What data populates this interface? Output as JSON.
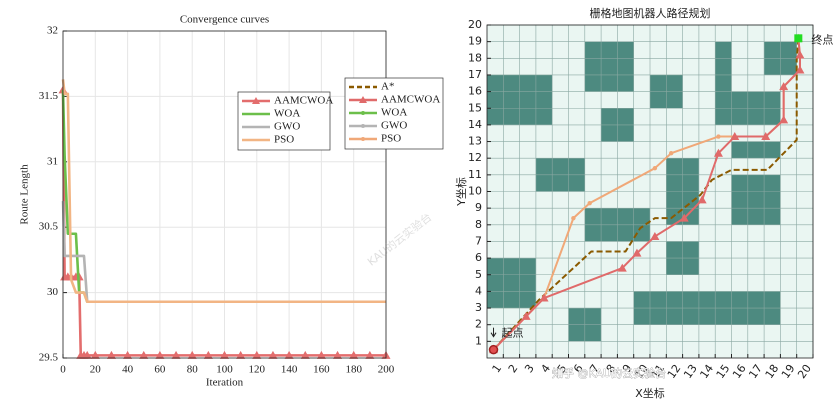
{
  "chart_data": [
    {
      "type": "line",
      "title": "Convergence curves",
      "x_label": "Iteration",
      "y_label": "Route Length",
      "xlim": [
        0,
        200
      ],
      "ylim": [
        29.5,
        32
      ],
      "xticks": [
        0,
        20,
        40,
        60,
        80,
        100,
        120,
        140,
        160,
        180,
        200
      ],
      "yticks": [
        29.5,
        30,
        30.5,
        31,
        31.5,
        32
      ],
      "grid": true,
      "x": [
        0,
        1,
        3,
        5,
        8,
        10,
        11,
        13,
        15,
        20,
        30,
        40,
        50,
        60,
        70,
        80,
        90,
        100,
        110,
        120,
        130,
        140,
        150,
        160,
        170,
        180,
        190,
        200
      ],
      "series": [
        {
          "name": "AAMCWOA",
          "color": "#e36d6d",
          "marker": "triangle",
          "values": [
            31.55,
            30.12,
            30.12,
            30.12,
            30.12,
            30.12,
            29.52,
            29.52,
            29.52,
            29.52,
            29.52,
            29.52,
            29.52,
            29.52,
            29.52,
            29.52,
            29.52,
            29.52,
            29.52,
            29.52,
            29.52,
            29.52,
            29.52,
            29.52,
            29.52,
            29.52,
            29.52,
            29.52
          ]
        },
        {
          "name": "WOA",
          "color": "#6cbf4a",
          "marker": "none",
          "values": [
            31.55,
            31.05,
            30.45,
            30.45,
            30.45,
            30,
            30,
            30,
            29.93,
            29.93,
            29.93,
            29.93,
            29.93,
            29.93,
            29.93,
            29.93,
            29.93,
            29.93,
            29.93,
            29.93,
            29.93,
            29.93,
            29.93,
            29.93,
            29.93,
            29.93,
            29.93,
            29.93
          ]
        },
        {
          "name": "GWO",
          "color": "#b4b4b4",
          "marker": "none",
          "values": [
            30.7,
            30.28,
            30.28,
            30.28,
            30.28,
            30.28,
            30.28,
            30.28,
            29.93,
            29.93,
            29.93,
            29.93,
            29.93,
            29.93,
            29.93,
            29.93,
            29.93,
            29.93,
            29.93,
            29.93,
            29.93,
            29.93,
            29.93,
            29.93,
            29.93,
            29.93,
            29.93,
            29.93
          ]
        },
        {
          "name": "PSO",
          "color": "#f2b584",
          "marker": "none",
          "values": [
            31.63,
            31.52,
            31.52,
            30.1,
            30,
            30,
            30,
            30,
            29.93,
            29.93,
            29.93,
            29.93,
            29.93,
            29.93,
            29.93,
            29.93,
            29.93,
            29.93,
            29.93,
            29.93,
            29.93,
            29.93,
            29.93,
            29.93,
            29.93,
            29.93,
            29.93,
            29.93
          ]
        }
      ]
    },
    {
      "type": "gridmap",
      "title": "栅格地图机器人路径规划",
      "x_label": "X坐标",
      "y_label": "Y坐标",
      "xlim": [
        0,
        20
      ],
      "ylim": [
        0,
        20
      ],
      "xticks": [
        1,
        2,
        3,
        4,
        5,
        6,
        7,
        8,
        9,
        10,
        11,
        12,
        13,
        14,
        15,
        16,
        17,
        18,
        19,
        20
      ],
      "yticks": [
        1,
        2,
        3,
        4,
        5,
        6,
        7,
        8,
        9,
        10,
        11,
        12,
        13,
        14,
        15,
        16,
        17,
        18,
        19,
        20
      ],
      "grid": true,
      "background": "#eaf6f2",
      "obstacle_color": "#4d8a80",
      "obstacles": [
        [
          0,
          4,
          14,
          17
        ],
        [
          0,
          3,
          3,
          6
        ],
        [
          5,
          7,
          1,
          3
        ],
        [
          3,
          6,
          10,
          12
        ],
        [
          6,
          10,
          7,
          9
        ],
        [
          6,
          9,
          16,
          19
        ],
        [
          7,
          9,
          13,
          15
        ],
        [
          10,
          12,
          15,
          17
        ],
        [
          11,
          13,
          8,
          12
        ],
        [
          11,
          13,
          5,
          7
        ],
        [
          9,
          18,
          2,
          4
        ],
        [
          14,
          15,
          14,
          19
        ],
        [
          14,
          18,
          14,
          16
        ],
        [
          15,
          18,
          12,
          13
        ],
        [
          15,
          18,
          8,
          11
        ],
        [
          17,
          19,
          17,
          19
        ]
      ],
      "series": [
        {
          "color": "#8b5a00",
          "marker": "none",
          "dash": true,
          "x": [
            0.4,
            3.2,
            6.4,
            8.5,
            9.4,
            10.3,
            11.3,
            13.1,
            13.8,
            15.0,
            17.2,
            19.0,
            19.0,
            19.1
          ],
          "values": [
            0.5,
            3.5,
            6.4,
            6.4,
            7.8,
            8.4,
            8.4,
            9.8,
            10.7,
            11.3,
            11.3,
            13.1,
            17.9,
            19.2
          ]
        },
        {
          "color": "#f0a878",
          "marker": "dot",
          "dash": false,
          "x": [
            0.4,
            2.4,
            3.5,
            5.3,
            6.3,
            10.3,
            11.3,
            14.2,
            17.1,
            18.2,
            18.2,
            19.2,
            19.2,
            19.1
          ],
          "values": [
            0.5,
            2.5,
            3.6,
            8.4,
            9.3,
            11.4,
            12.3,
            13.3,
            13.3,
            14.3,
            16.3,
            17.3,
            18.2,
            19.2
          ]
        },
        {
          "color": "#e06a6a",
          "marker": "triangle",
          "dash": false,
          "x": [
            0.4,
            2.4,
            3.5,
            8.3,
            9.2,
            10.3,
            12.1,
            13.2,
            14.2,
            15.2,
            17.1,
            18.2,
            18.2,
            19.2,
            19.2,
            19.1
          ],
          "values": [
            0.5,
            2.5,
            3.6,
            5.4,
            6.3,
            7.3,
            8.4,
            9.5,
            12.3,
            13.3,
            13.3,
            14.3,
            16.3,
            17.3,
            18.2,
            19.2
          ]
        }
      ],
      "legend": [
        {
          "name": "A*",
          "color": "#8b5a00",
          "marker": "none",
          "dash": true
        },
        {
          "name": "AAMCWOA",
          "color": "#e06a6a",
          "marker": "triangle",
          "dash": false
        },
        {
          "name": "WOA",
          "color": "#6cbf4a",
          "marker": "dot",
          "dash": false
        },
        {
          "name": "GWO",
          "color": "#b4b4b4",
          "marker": "dot",
          "dash": false
        },
        {
          "name": "PSO",
          "color": "#f0a878",
          "marker": "dot",
          "dash": false
        }
      ],
      "start": {
        "x": 0.4,
        "y": 0.5,
        "label": "起点",
        "color": "#e05050"
      },
      "end": {
        "x": 19.1,
        "y": 19.2,
        "label": "终点",
        "color": "#22dd22"
      }
    }
  ],
  "watermarks": [
    "KAU的云实验台",
    "知乎 @KAU的云实验台"
  ]
}
